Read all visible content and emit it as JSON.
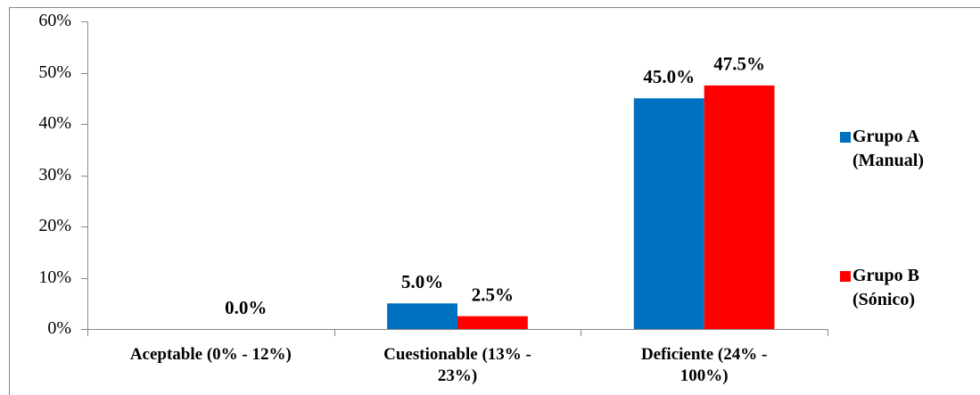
{
  "chart_data": {
    "type": "bar",
    "categories": [
      "Aceptable (0% - 12%)",
      "Cuestionable (13% - 23%)",
      "Deficiente (24% - 100%)"
    ],
    "series": [
      {
        "name": "Grupo A (Manual)",
        "color": "#0070c0",
        "values": [
          0,
          5,
          45
        ],
        "value_labels": [
          null,
          "5.0%",
          "45.0%"
        ]
      },
      {
        "name": "Grupo B (Sónico)",
        "color": "#ff0000",
        "values": [
          0,
          2.5,
          47.5
        ],
        "value_labels": [
          "0.0%",
          "2.5%",
          "47.5%"
        ]
      }
    ],
    "ylim": [
      0,
      60
    ],
    "yticks": [
      {
        "value": 0,
        "label": "0%"
      },
      {
        "value": 10,
        "label": "10%"
      },
      {
        "value": 20,
        "label": "20%"
      },
      {
        "value": 30,
        "label": "30%"
      },
      {
        "value": 40,
        "label": "40%"
      },
      {
        "value": 50,
        "label": "50%"
      },
      {
        "value": 60,
        "label": "60%"
      }
    ],
    "grid": false,
    "legend": "right"
  }
}
